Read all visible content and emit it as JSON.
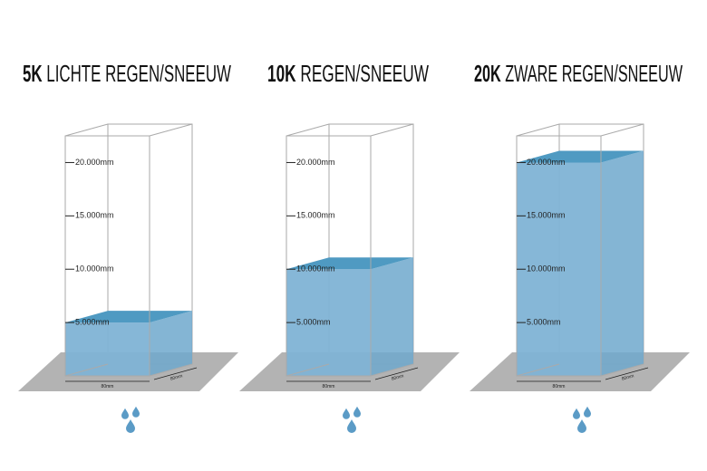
{
  "ylim": [
    0,
    22500
  ],
  "panels": [
    {
      "title_bold": "5K",
      "title": "LICHTE REGEN/SNEEUW",
      "level": 5000,
      "ticks": [
        {
          "value": 5000,
          "label": "5.000mm"
        },
        {
          "value": 10000,
          "label": "10.000mm"
        },
        {
          "value": 15000,
          "label": "15.000mm"
        },
        {
          "value": 20000,
          "label": "20.000mm"
        }
      ],
      "width_label": "80mm",
      "depth_label": "80mm"
    },
    {
      "title_bold": "10K",
      "title": "REGEN/SNEEUW",
      "level": 10000,
      "ticks": [
        {
          "value": 5000,
          "label": "5.000mm"
        },
        {
          "value": 10000,
          "label": "10.000mm"
        },
        {
          "value": 15000,
          "label": "15.000mm"
        },
        {
          "value": 20000,
          "label": "20.000mm"
        }
      ],
      "width_label": "80mm",
      "depth_label": "80mm"
    },
    {
      "title_bold": "20K",
      "title": "ZWARE REGEN/SNEEUW",
      "level": 20000,
      "ticks": [
        {
          "value": 5000,
          "label": "5.000mm"
        },
        {
          "value": 10000,
          "label": "10.000mm"
        },
        {
          "value": 15000,
          "label": "15.000mm"
        },
        {
          "value": 20000,
          "label": "20.000mm"
        }
      ],
      "width_label": "80mm",
      "depth_label": "80mm"
    }
  ]
}
